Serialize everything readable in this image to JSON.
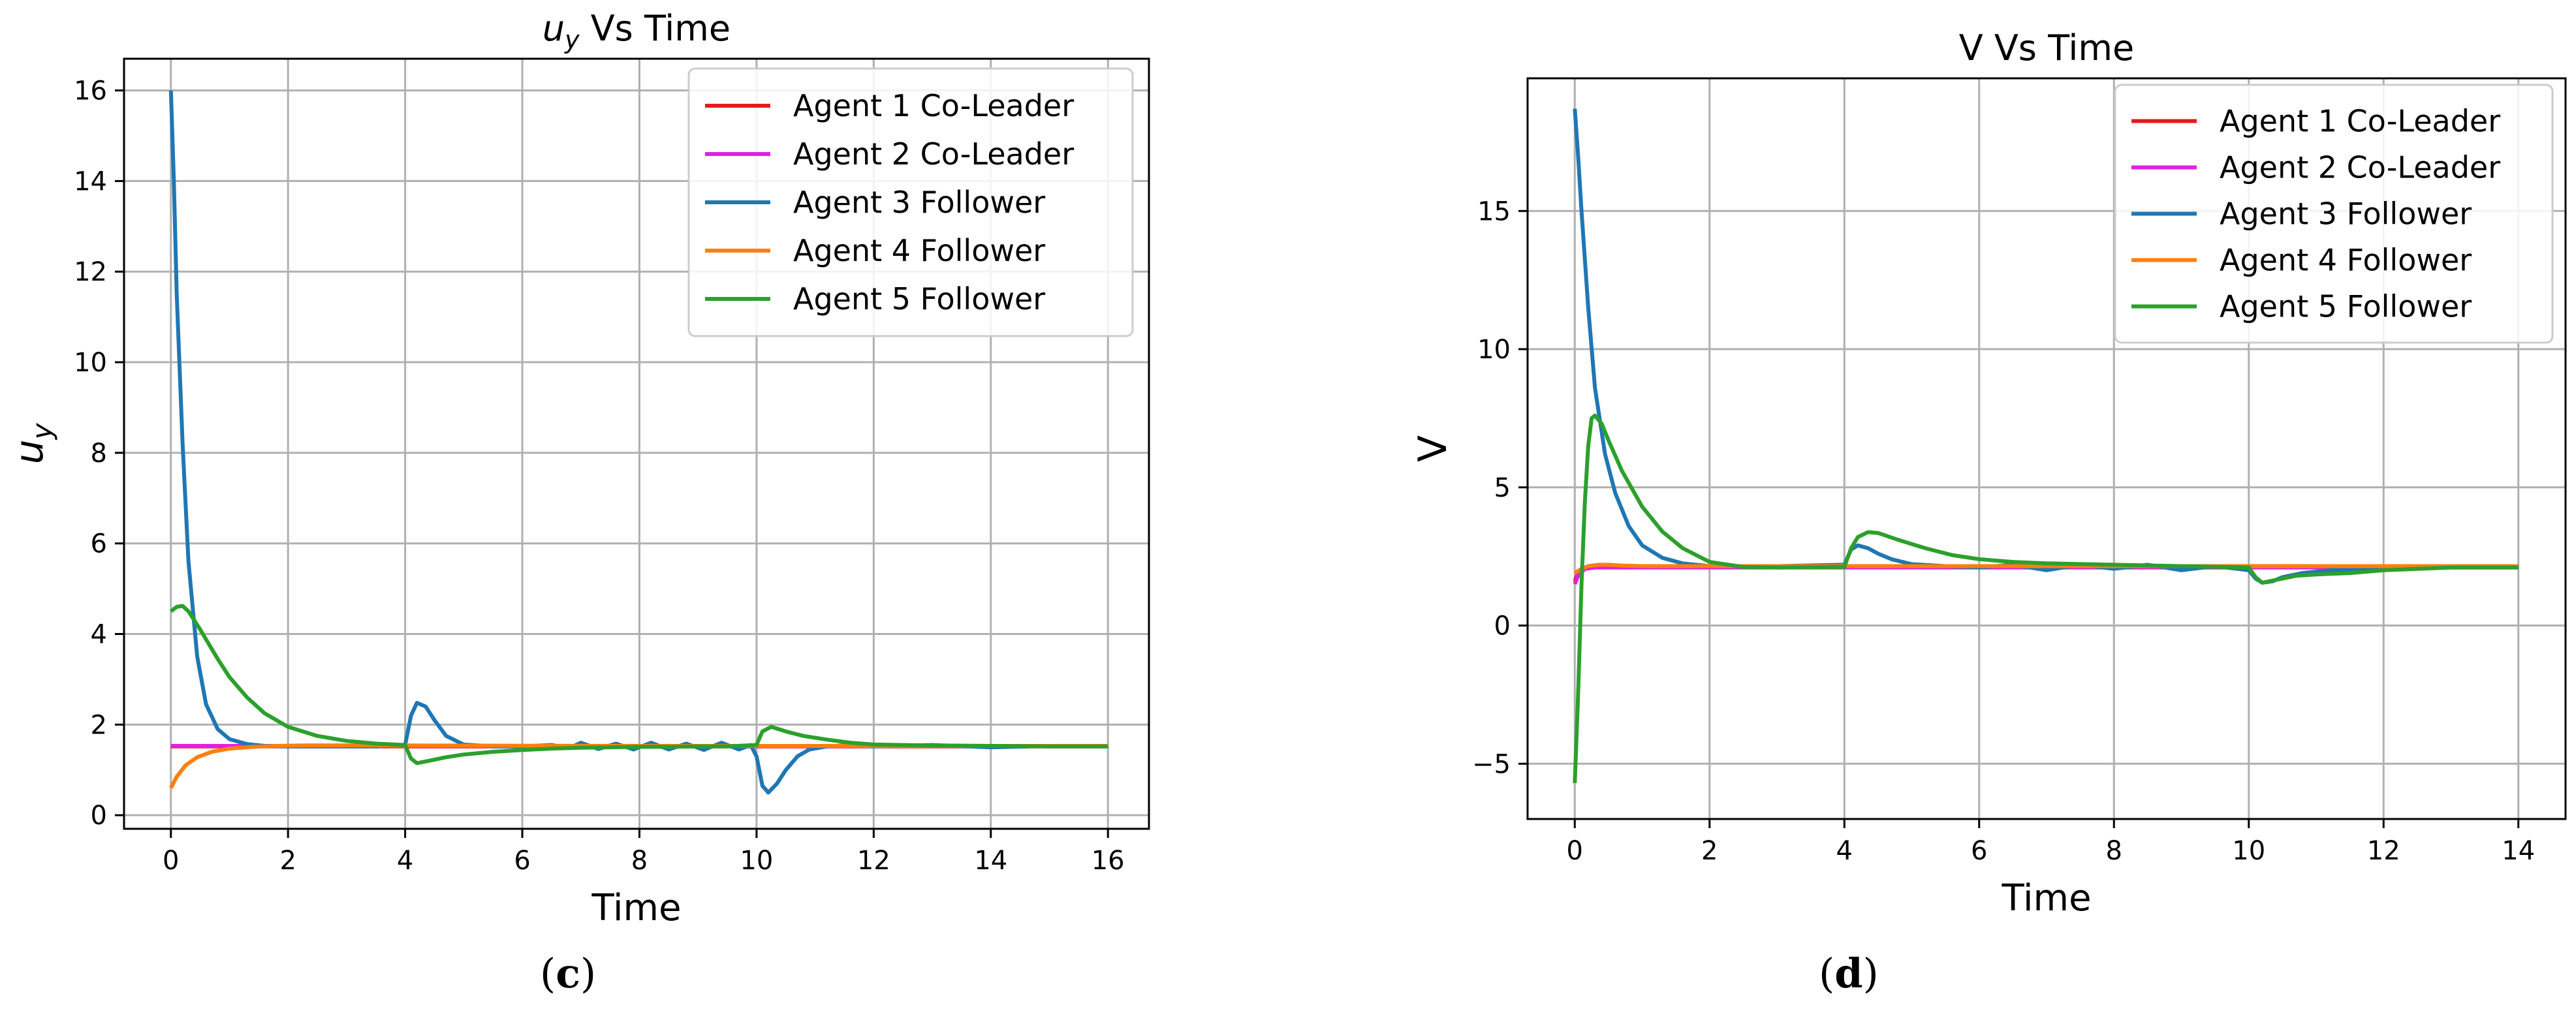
{
  "colors": {
    "agent1": "#e41a1c",
    "agent2": "#e020e0",
    "agent3": "#1f77b4",
    "agent4": "#ff7f0e",
    "agent5": "#2ca02c",
    "grid": "#b0b0b0",
    "axis": "#000000"
  },
  "chart_data": [
    {
      "type": "line",
      "title_main": "u",
      "title_sub": "y",
      "title_rest": " Vs Time",
      "xlabel": "Time",
      "ylabel_main": "u",
      "ylabel_sub": "y",
      "xlim": [
        -0.8,
        16.7
      ],
      "ylim": [
        -0.3,
        16.7
      ],
      "xticks": [
        0,
        2,
        4,
        6,
        8,
        10,
        12,
        14,
        16
      ],
      "yticks": [
        0,
        2,
        4,
        6,
        8,
        10,
        12,
        14,
        16
      ],
      "grid": true,
      "legend_position": "top-right",
      "series": [
        {
          "name": "Agent 1 Co-Leader",
          "color_key": "agent1",
          "x": [
            0,
            16
          ],
          "y": [
            1.52,
            1.52
          ]
        },
        {
          "name": "Agent 2 Co-Leader",
          "color_key": "agent2",
          "x": [
            0,
            16
          ],
          "y": [
            1.53,
            1.53
          ]
        },
        {
          "name": "Agent 3 Follower",
          "color_key": "agent3",
          "x": [
            0,
            0.05,
            0.1,
            0.2,
            0.3,
            0.45,
            0.6,
            0.8,
            1.0,
            1.3,
            1.6,
            2.0,
            2.5,
            3.0,
            3.5,
            4.0,
            4.1,
            4.2,
            4.35,
            4.5,
            4.7,
            5.0,
            5.5,
            6.0,
            6.5,
            6.8,
            7.0,
            7.3,
            7.6,
            7.9,
            8.2,
            8.5,
            8.8,
            9.1,
            9.4,
            9.7,
            9.9,
            10.0,
            10.1,
            10.2,
            10.35,
            10.5,
            10.7,
            10.9,
            11.2,
            11.5,
            12.0,
            13.0,
            14.0,
            15.0,
            16.0
          ],
          "y": [
            16.0,
            14.0,
            11.5,
            8.2,
            5.6,
            3.5,
            2.45,
            1.9,
            1.68,
            1.57,
            1.53,
            1.52,
            1.52,
            1.52,
            1.52,
            1.55,
            2.2,
            2.48,
            2.4,
            2.1,
            1.75,
            1.56,
            1.52,
            1.52,
            1.55,
            1.48,
            1.6,
            1.46,
            1.58,
            1.45,
            1.6,
            1.45,
            1.58,
            1.44,
            1.6,
            1.45,
            1.55,
            1.3,
            0.65,
            0.5,
            0.7,
            1.0,
            1.3,
            1.45,
            1.52,
            1.54,
            1.52,
            1.55,
            1.5,
            1.53,
            1.52
          ]
        },
        {
          "name": "Agent 4 Follower",
          "color_key": "agent4",
          "x": [
            0,
            0.1,
            0.25,
            0.45,
            0.7,
            1.0,
            1.4,
            1.8,
            2.3,
            3.0,
            4.0,
            8.0,
            12.0,
            16.0
          ],
          "y": [
            0.6,
            0.85,
            1.1,
            1.28,
            1.4,
            1.47,
            1.51,
            1.53,
            1.54,
            1.54,
            1.54,
            1.53,
            1.53,
            1.53
          ]
        },
        {
          "name": "Agent 5 Follower",
          "color_key": "agent5",
          "x": [
            0,
            0.1,
            0.2,
            0.3,
            0.5,
            0.8,
            1.0,
            1.3,
            1.6,
            2.0,
            2.5,
            3.0,
            3.5,
            4.0,
            4.1,
            4.2,
            4.4,
            4.7,
            5.0,
            5.5,
            6.0,
            6.5,
            7.0,
            7.5,
            8.0,
            8.5,
            9.0,
            9.5,
            10.0,
            10.1,
            10.25,
            10.5,
            10.8,
            11.2,
            11.6,
            12.0,
            13.0,
            14.0,
            15.0,
            16.0
          ],
          "y": [
            4.5,
            4.6,
            4.62,
            4.5,
            4.1,
            3.45,
            3.05,
            2.6,
            2.25,
            1.95,
            1.75,
            1.64,
            1.58,
            1.55,
            1.25,
            1.15,
            1.2,
            1.28,
            1.34,
            1.4,
            1.44,
            1.47,
            1.49,
            1.5,
            1.51,
            1.51,
            1.52,
            1.52,
            1.55,
            1.85,
            1.95,
            1.85,
            1.75,
            1.67,
            1.6,
            1.56,
            1.54,
            1.53,
            1.52,
            1.52
          ]
        }
      ]
    },
    {
      "type": "line",
      "title_main": "V Vs Time",
      "title_sub": "",
      "title_rest": "",
      "xlabel": "Time",
      "ylabel_main": "V",
      "ylabel_sub": "",
      "xlim": [
        -0.7,
        14.7
      ],
      "ylim": [
        -7.0,
        19.8
      ],
      "xticks": [
        0,
        2,
        4,
        6,
        8,
        10,
        12,
        14
      ],
      "yticks": [
        -5,
        0,
        5,
        10,
        15
      ],
      "grid": true,
      "legend_position": "top-right",
      "series": [
        {
          "name": "Agent 1 Co-Leader",
          "color_key": "agent1",
          "x": [
            0,
            0.05,
            0.15,
            0.3,
            14
          ],
          "y": [
            1.6,
            1.9,
            2.1,
            2.15,
            2.15
          ]
        },
        {
          "name": "Agent 2 Co-Leader",
          "color_key": "agent2",
          "x": [
            0,
            0.05,
            0.15,
            0.3,
            14
          ],
          "y": [
            1.5,
            1.8,
            2.05,
            2.1,
            2.1
          ]
        },
        {
          "name": "Agent 3 Follower",
          "color_key": "agent3",
          "x": [
            0,
            0.05,
            0.1,
            0.2,
            0.3,
            0.45,
            0.6,
            0.8,
            1.0,
            1.3,
            1.6,
            2.0,
            2.5,
            3.0,
            4.0,
            4.1,
            4.2,
            4.35,
            4.5,
            4.7,
            5.0,
            5.5,
            6.0,
            6.5,
            7.0,
            7.5,
            8.0,
            8.5,
            9.0,
            9.5,
            10.0,
            10.1,
            10.2,
            10.35,
            10.5,
            10.8,
            11.2,
            12.0,
            13.0,
            14.0
          ],
          "y": [
            18.7,
            17.0,
            15.0,
            11.5,
            8.6,
            6.2,
            4.8,
            3.6,
            2.9,
            2.45,
            2.25,
            2.15,
            2.15,
            2.15,
            2.2,
            2.75,
            2.9,
            2.8,
            2.6,
            2.4,
            2.22,
            2.15,
            2.1,
            2.2,
            2.0,
            2.2,
            2.05,
            2.2,
            2.0,
            2.15,
            2.0,
            1.7,
            1.55,
            1.6,
            1.75,
            1.9,
            2.0,
            2.1,
            2.15,
            2.15
          ]
        },
        {
          "name": "Agent 4 Follower",
          "color_key": "agent4",
          "x": [
            0,
            0.1,
            0.2,
            0.35,
            0.5,
            0.7,
            1.0,
            1.5,
            2.0,
            14.0
          ],
          "y": [
            1.9,
            2.05,
            2.15,
            2.2,
            2.2,
            2.17,
            2.15,
            2.15,
            2.15,
            2.15
          ]
        },
        {
          "name": "Agent 5 Follower",
          "color_key": "agent5",
          "x": [
            0,
            0.05,
            0.1,
            0.15,
            0.2,
            0.25,
            0.3,
            0.4,
            0.5,
            0.7,
            1.0,
            1.3,
            1.6,
            2.0,
            2.5,
            3.0,
            4.0,
            4.1,
            4.2,
            4.35,
            4.5,
            4.8,
            5.2,
            5.6,
            6.0,
            6.5,
            7.0,
            8.0,
            9.0,
            10.0,
            10.1,
            10.2,
            10.4,
            10.7,
            11.0,
            11.5,
            12.0,
            13.0,
            14.0
          ],
          "y": [
            -5.7,
            -2.5,
            1.5,
            4.5,
            6.5,
            7.5,
            7.6,
            7.3,
            6.7,
            5.6,
            4.3,
            3.4,
            2.8,
            2.3,
            2.12,
            2.1,
            2.12,
            2.8,
            3.2,
            3.38,
            3.35,
            3.1,
            2.8,
            2.55,
            2.4,
            2.3,
            2.25,
            2.2,
            2.15,
            2.1,
            1.75,
            1.55,
            1.65,
            1.8,
            1.85,
            1.9,
            2.0,
            2.1,
            2.1
          ]
        }
      ]
    }
  ],
  "panel_labels": [
    "c",
    "d"
  ]
}
